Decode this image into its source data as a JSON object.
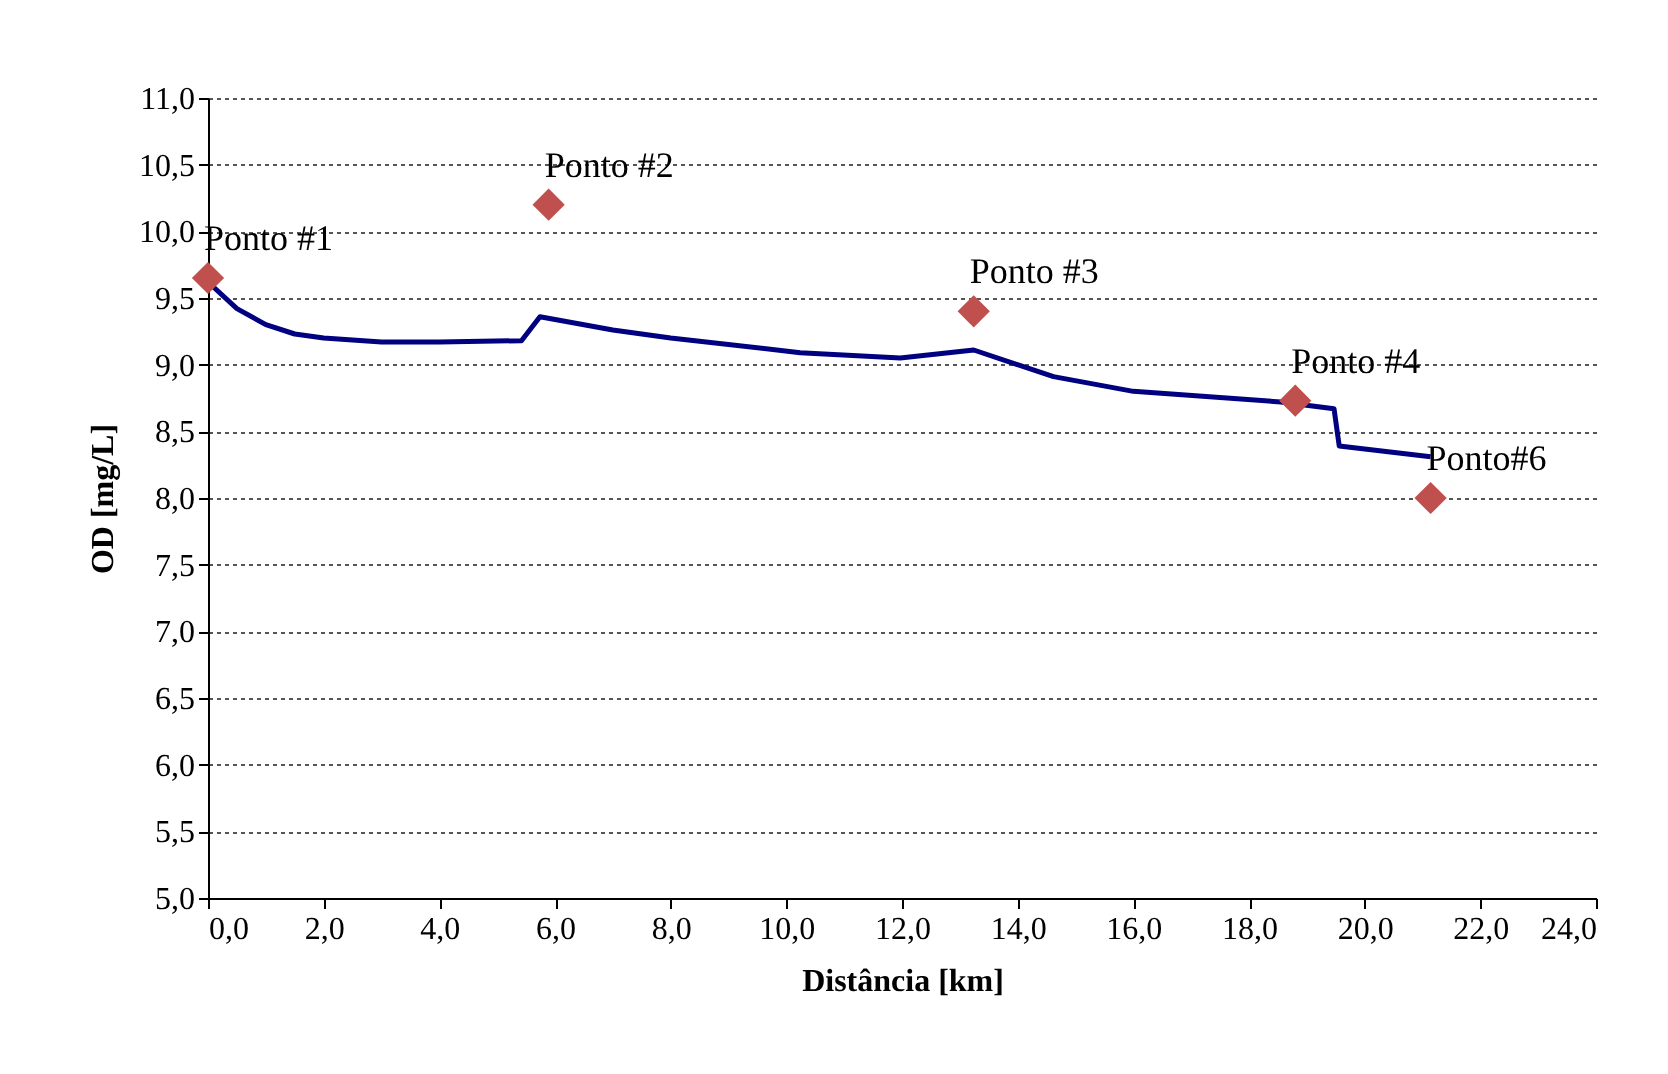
{
  "chart_data": {
    "type": "line",
    "xlabel": "Distância [km]",
    "ylabel": "OD [mg/L]",
    "series": [
      {
        "type": "line",
        "color": "#000080",
        "line_style": "solid",
        "marker": "none",
        "x": [
          0,
          0.5,
          1,
          1.5,
          2,
          3,
          4,
          5.42,
          5.74,
          7,
          8,
          10.24,
          11.97,
          13.24,
          14.62,
          16,
          18.55,
          19.47,
          19.56,
          21.14
        ],
        "values": [
          9.62,
          9.42,
          9.3,
          9.23,
          9.2,
          9.17,
          9.17,
          9.18,
          9.36,
          9.26,
          9.2,
          9.09,
          9.05,
          9.11,
          8.91,
          8.8,
          8.72,
          8.67,
          8.39,
          8.31
        ]
      },
      {
        "type": "scatter",
        "color": "#c0504d",
        "marker": "diamond",
        "x": [
          0,
          5.89,
          13.24,
          18.8,
          21.14
        ],
        "values": [
          9.65,
          10.2,
          9.4,
          8.73,
          8.0
        ]
      }
    ],
    "annotations": [
      {
        "text": "Ponto #1",
        "x": 0,
        "y": 9.65
      },
      {
        "text": "Ponto #2",
        "x": 5.89,
        "y": 10.2
      },
      {
        "text": "Ponto #3",
        "x": 13.24,
        "y": 9.4
      },
      {
        "text": "Ponto #4",
        "x": 18.8,
        "y": 8.73
      },
      {
        "text": "Ponto#6",
        "x": 21.14,
        "y": 8.0
      }
    ],
    "xlim": [
      0,
      24
    ],
    "xticks": [
      {
        "value": 0,
        "label": "0,0"
      },
      {
        "value": 2,
        "label": "2,0"
      },
      {
        "value": 4,
        "label": "4,0"
      },
      {
        "value": 6,
        "label": "6,0"
      },
      {
        "value": 8,
        "label": "8,0"
      },
      {
        "value": 10,
        "label": "10,0"
      },
      {
        "value": 12,
        "label": "12,0"
      },
      {
        "value": 14,
        "label": "14,0"
      },
      {
        "value": 16,
        "label": "16,0"
      },
      {
        "value": 18,
        "label": "18,0"
      },
      {
        "value": 20,
        "label": "20,0"
      },
      {
        "value": 22,
        "label": "22,0"
      },
      {
        "value": 24,
        "label": "24,0"
      }
    ],
    "ylim": [
      5,
      11
    ],
    "yticks": [
      {
        "value": 5,
        "label": "5,0"
      },
      {
        "value": 5.5,
        "label": "5,5"
      },
      {
        "value": 6,
        "label": "6,0"
      },
      {
        "value": 6.5,
        "label": "6,5"
      },
      {
        "value": 7,
        "label": "7,0"
      },
      {
        "value": 7.5,
        "label": "7,5"
      },
      {
        "value": 8,
        "label": "8,0"
      },
      {
        "value": 8.5,
        "label": "8,5"
      },
      {
        "value": 9,
        "label": "9,0"
      },
      {
        "value": 9.5,
        "label": "9,5"
      },
      {
        "value": 10,
        "label": "10,0"
      },
      {
        "value": 10.5,
        "label": "10,5"
      },
      {
        "value": 11,
        "label": "11,0"
      }
    ],
    "grid": "y"
  }
}
